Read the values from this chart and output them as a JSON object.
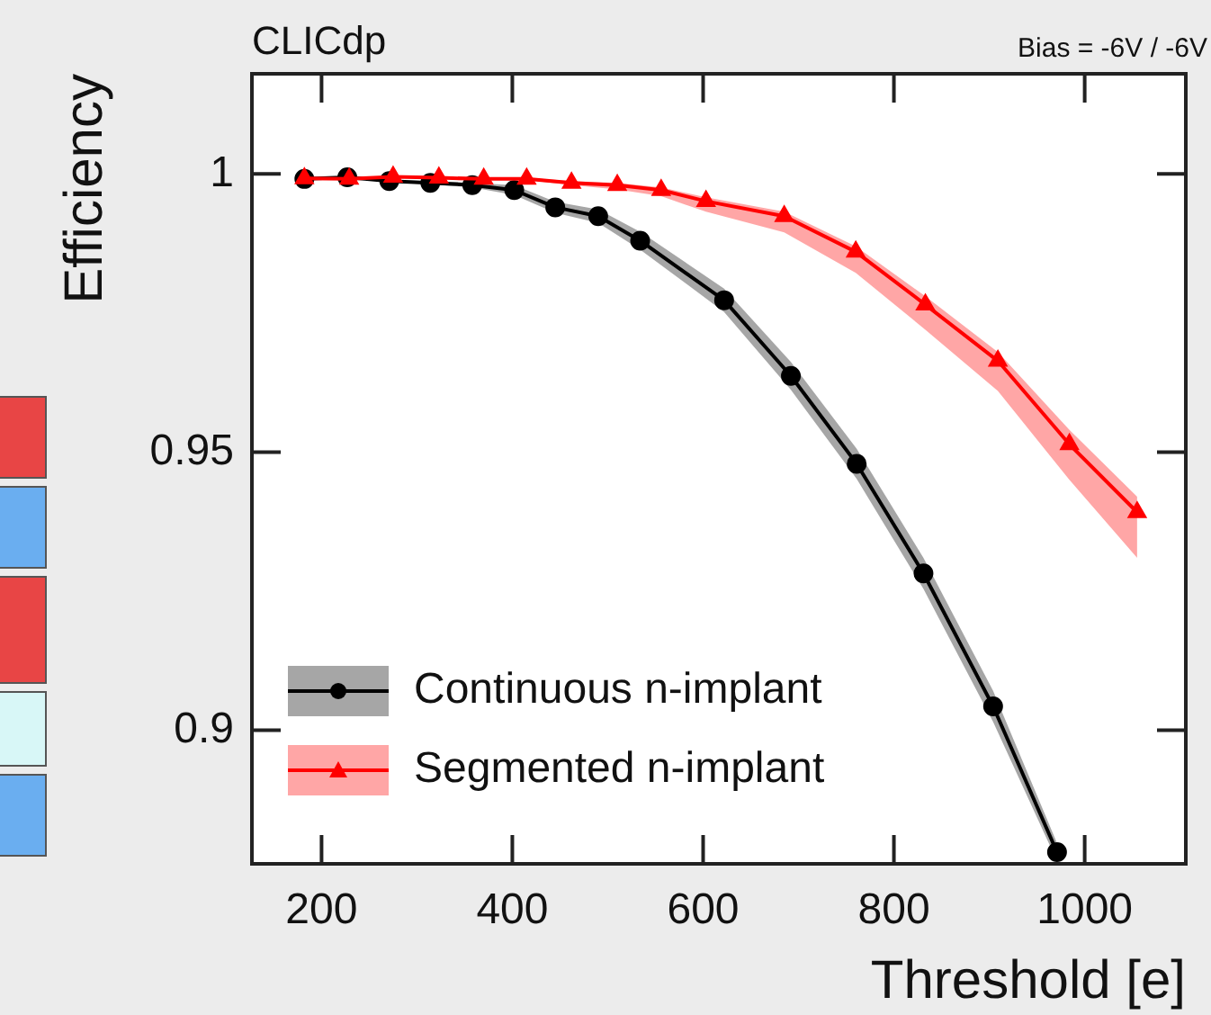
{
  "chart_data": {
    "type": "line",
    "title": "CLICdp",
    "annotations": [
      "Bias = -6V / -6V"
    ],
    "xlabel": "Threshold [e]",
    "ylabel": "Efficiency",
    "xlim": [
      127,
      1106
    ],
    "xticks": [
      200,
      400,
      600,
      800,
      1000
    ],
    "ylim": [
      0.876,
      1.018
    ],
    "yticks": [
      0.9,
      0.95,
      1
    ],
    "legend": "bottom left",
    "series": [
      {
        "name": "Continuous n-implant",
        "color": "#000000",
        "marker": "circle",
        "x": [
          182,
          227,
          271,
          314,
          358,
          402,
          445,
          490,
          534,
          622,
          692,
          761,
          831,
          904,
          971
        ],
        "values": [
          0.9991,
          0.9994,
          0.9987,
          0.9984,
          0.998,
          0.9971,
          0.994,
          0.9924,
          0.988,
          0.9773,
          0.9637,
          0.9479,
          0.9282,
          0.9043,
          0.8781
        ],
        "lower": [
          0.999,
          0.9993,
          0.9985,
          0.9981,
          0.9976,
          0.9962,
          0.993,
          0.9912,
          0.9864,
          0.9752,
          0.9612,
          0.9452,
          0.9254,
          0.9015,
          0.8765
        ],
        "upper": [
          0.9992,
          0.9995,
          0.9989,
          0.9987,
          0.9984,
          0.998,
          0.995,
          0.9936,
          0.9896,
          0.9794,
          0.9662,
          0.9506,
          0.931,
          0.9071,
          0.8797
        ]
      },
      {
        "name": "Segmented n-implant",
        "color": "#ff0000",
        "marker": "triangle",
        "x": [
          182,
          229,
          275,
          323,
          370,
          415,
          462,
          510,
          556,
          603,
          685,
          760,
          833,
          909,
          984,
          1055
        ],
        "values": [
          0.9992,
          0.9991,
          0.9995,
          0.9993,
          0.9991,
          0.9991,
          0.9984,
          0.998,
          0.9971,
          0.9951,
          0.9924,
          0.986,
          0.9765,
          0.9664,
          0.9514,
          0.9392
        ],
        "lower": [
          0.9991,
          0.999,
          0.9994,
          0.9992,
          0.999,
          0.9989,
          0.998,
          0.9972,
          0.996,
          0.9932,
          0.9895,
          0.9822,
          0.972,
          0.961,
          0.945,
          0.931
        ],
        "upper": [
          0.9993,
          0.9992,
          0.9996,
          0.9994,
          0.9992,
          0.9993,
          0.9987,
          0.9984,
          0.9976,
          0.9958,
          0.9932,
          0.987,
          0.978,
          0.968,
          0.954,
          0.942
        ]
      }
    ]
  }
}
